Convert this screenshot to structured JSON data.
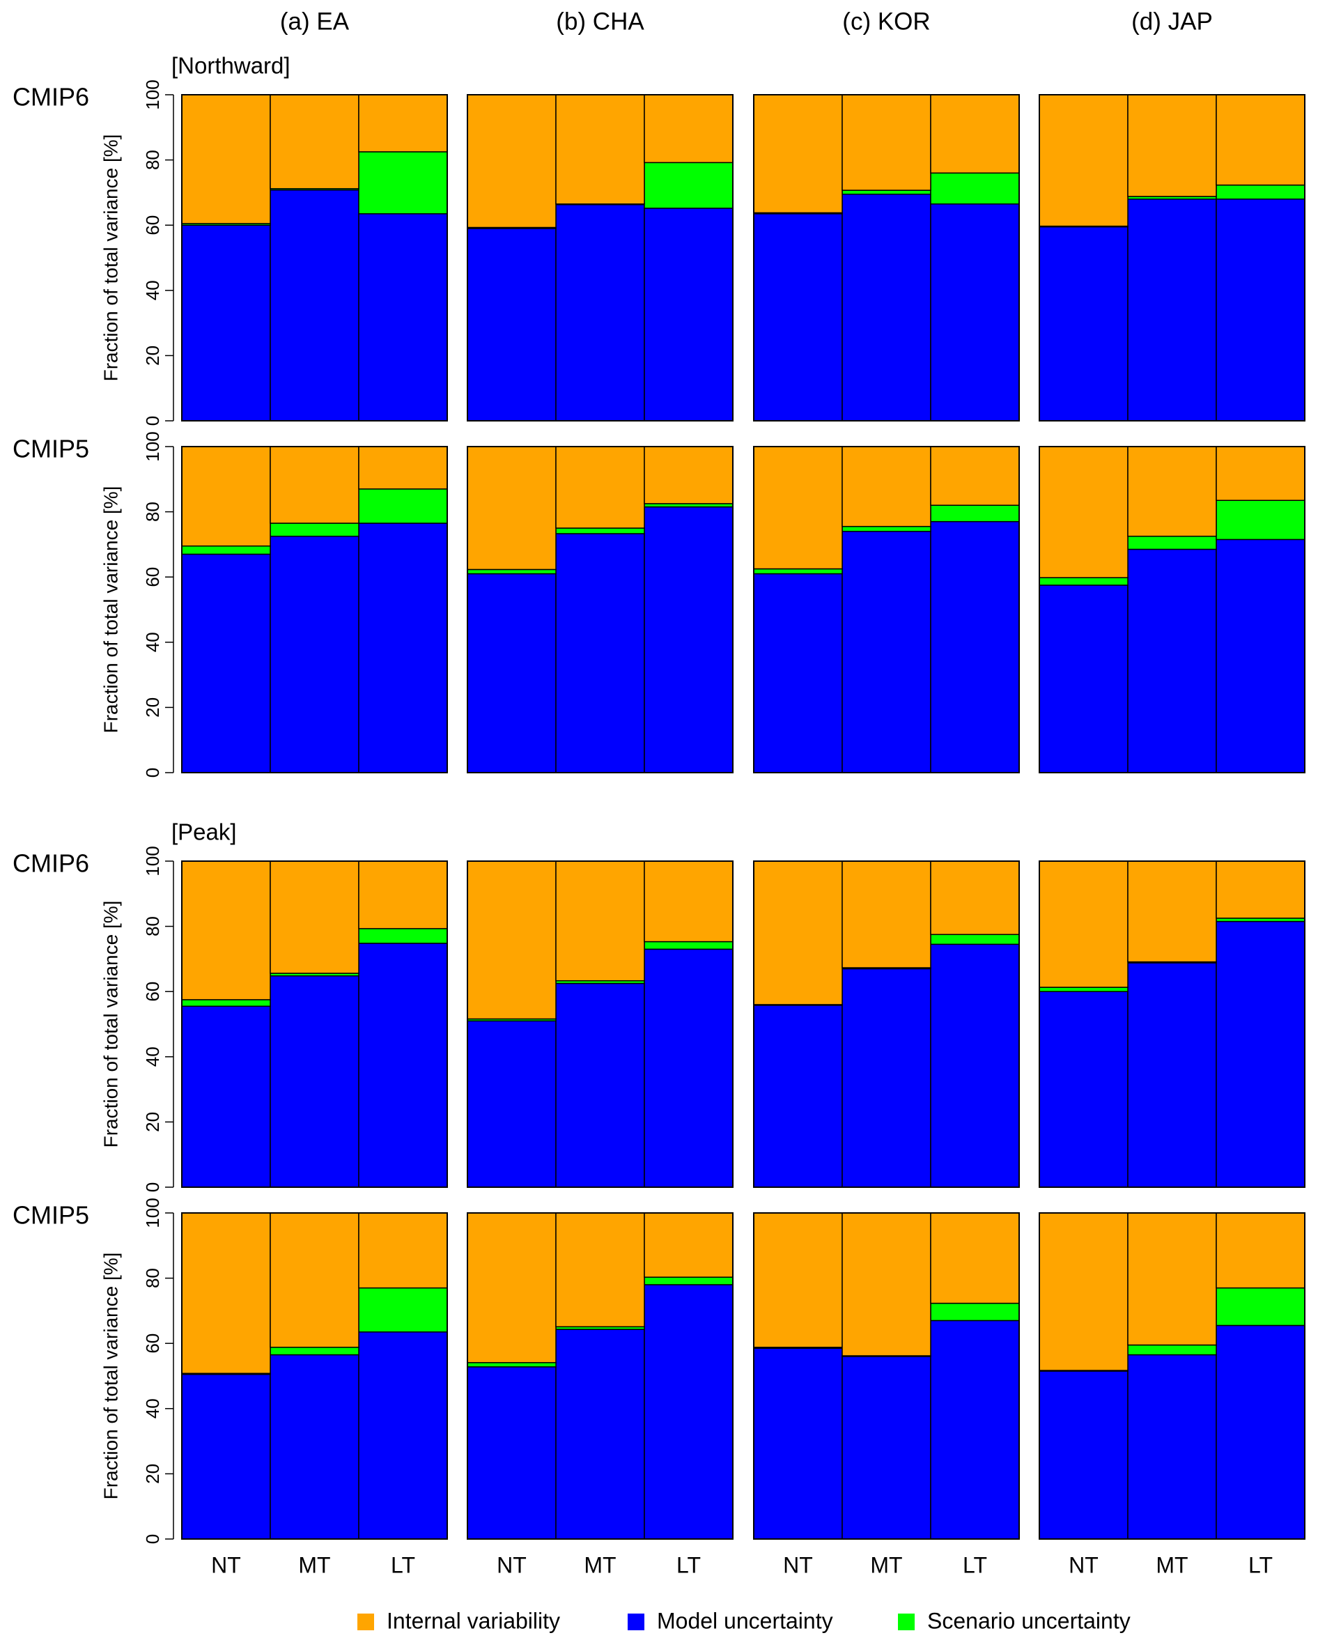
{
  "chart_data": [
    {
      "type": "bar",
      "stacked": true,
      "title": "(a) EA",
      "row_label": "CMIP6",
      "section": "[Northward]",
      "ylabel": "Fraction of total variance [%]",
      "categories": [
        null,
        null,
        null
      ],
      "ylim": [
        0,
        100
      ],
      "yticks": [
        0,
        20,
        40,
        60,
        80,
        100
      ],
      "series": [
        {
          "color": "#0000ff",
          "values": [
            60,
            70.8,
            63.5
          ]
        },
        {
          "color": "#00ff00",
          "values": [
            0.5,
            0.4,
            19
          ]
        },
        {
          "color": "#ffa500",
          "values": [
            39.5,
            28.8,
            17.5
          ]
        }
      ]
    },
    {
      "type": "bar",
      "stacked": true,
      "title": "(b) CHA",
      "categories": [
        null,
        null,
        null
      ],
      "ylim": [
        0,
        100
      ],
      "series": [
        {
          "color": "#0000ff",
          "values": [
            59,
            66.3,
            65.2
          ]
        },
        {
          "color": "#00ff00",
          "values": [
            0.3,
            0.2,
            14
          ]
        },
        {
          "color": "#ffa500",
          "values": [
            40.7,
            33.5,
            20.8
          ]
        }
      ]
    },
    {
      "type": "bar",
      "stacked": true,
      "title": "(c) KOR",
      "categories": [
        null,
        null,
        null
      ],
      "ylim": [
        0,
        100
      ],
      "series": [
        {
          "color": "#0000ff",
          "values": [
            63.5,
            69.5,
            66.5
          ]
        },
        {
          "color": "#00ff00",
          "values": [
            0.3,
            1.2,
            9.5
          ]
        },
        {
          "color": "#ffa500",
          "values": [
            36.2,
            29.3,
            24
          ]
        }
      ]
    },
    {
      "type": "bar",
      "stacked": true,
      "title": "(d) JAP",
      "categories": [
        null,
        null,
        null
      ],
      "ylim": [
        0,
        100
      ],
      "series": [
        {
          "color": "#0000ff",
          "values": [
            59.5,
            68,
            68
          ]
        },
        {
          "color": "#00ff00",
          "values": [
            0.2,
            0.8,
            4.3
          ]
        },
        {
          "color": "#ffa500",
          "values": [
            40.3,
            31.2,
            27.7
          ]
        }
      ]
    },
    {
      "type": "bar",
      "stacked": true,
      "row_label": "CMIP5",
      "ylabel": "Fraction of total variance [%]",
      "categories": [
        null,
        null,
        null
      ],
      "ylim": [
        0,
        100
      ],
      "yticks": [
        0,
        20,
        40,
        60,
        80,
        100
      ],
      "series": [
        {
          "color": "#0000ff",
          "values": [
            67,
            72.5,
            76.5
          ]
        },
        {
          "color": "#00ff00",
          "values": [
            2.5,
            4,
            10.5
          ]
        },
        {
          "color": "#ffa500",
          "values": [
            30.5,
            23.5,
            13
          ]
        }
      ]
    },
    {
      "type": "bar",
      "stacked": true,
      "categories": [
        null,
        null,
        null
      ],
      "ylim": [
        0,
        100
      ],
      "series": [
        {
          "color": "#0000ff",
          "values": [
            61,
            73.3,
            81.5
          ]
        },
        {
          "color": "#00ff00",
          "values": [
            1.3,
            1.7,
            1
          ]
        },
        {
          "color": "#ffa500",
          "values": [
            37.7,
            25,
            17.5
          ]
        }
      ]
    },
    {
      "type": "bar",
      "stacked": true,
      "categories": [
        null,
        null,
        null
      ],
      "ylim": [
        0,
        100
      ],
      "series": [
        {
          "color": "#0000ff",
          "values": [
            61,
            74,
            77
          ]
        },
        {
          "color": "#00ff00",
          "values": [
            1.5,
            1.5,
            5
          ]
        },
        {
          "color": "#ffa500",
          "values": [
            37.5,
            24.5,
            18
          ]
        }
      ]
    },
    {
      "type": "bar",
      "stacked": true,
      "categories": [
        null,
        null,
        null
      ],
      "ylim": [
        0,
        100
      ],
      "series": [
        {
          "color": "#0000ff",
          "values": [
            57.5,
            68.5,
            71.5
          ]
        },
        {
          "color": "#00ff00",
          "values": [
            2.3,
            4,
            12
          ]
        },
        {
          "color": "#ffa500",
          "values": [
            40.2,
            27.5,
            16.5
          ]
        }
      ]
    },
    {
      "type": "bar",
      "stacked": true,
      "row_label": "CMIP6",
      "section": "[Peak]",
      "ylabel": "Fraction of total variance [%]",
      "categories": [
        null,
        null,
        null
      ],
      "ylim": [
        0,
        100
      ],
      "yticks": [
        0,
        20,
        40,
        60,
        80,
        100
      ],
      "series": [
        {
          "color": "#0000ff",
          "values": [
            55.5,
            64.8,
            74.8
          ]
        },
        {
          "color": "#00ff00",
          "values": [
            2,
            0.8,
            4.5
          ]
        },
        {
          "color": "#ffa500",
          "values": [
            42.5,
            34.4,
            20.7
          ]
        }
      ]
    },
    {
      "type": "bar",
      "stacked": true,
      "categories": [
        null,
        null,
        null
      ],
      "ylim": [
        0,
        100
      ],
      "series": [
        {
          "color": "#0000ff",
          "values": [
            51,
            62.5,
            73
          ]
        },
        {
          "color": "#00ff00",
          "values": [
            0.6,
            0.8,
            2.3
          ]
        },
        {
          "color": "#ffa500",
          "values": [
            48.4,
            36.7,
            24.7
          ]
        }
      ]
    },
    {
      "type": "bar",
      "stacked": true,
      "categories": [
        null,
        null,
        null
      ],
      "ylim": [
        0,
        100
      ],
      "series": [
        {
          "color": "#0000ff",
          "values": [
            55.8,
            67,
            74.5
          ]
        },
        {
          "color": "#00ff00",
          "values": [
            0.2,
            0.3,
            3
          ]
        },
        {
          "color": "#ffa500",
          "values": [
            44,
            32.7,
            22.5
          ]
        }
      ]
    },
    {
      "type": "bar",
      "stacked": true,
      "categories": [
        null,
        null,
        null
      ],
      "ylim": [
        0,
        100
      ],
      "series": [
        {
          "color": "#0000ff",
          "values": [
            60,
            68.8,
            81.5
          ]
        },
        {
          "color": "#00ff00",
          "values": [
            1.3,
            0.3,
            1
          ]
        },
        {
          "color": "#ffa500",
          "values": [
            38.7,
            30.9,
            17.5
          ]
        }
      ]
    },
    {
      "type": "bar",
      "stacked": true,
      "row_label": "CMIP5",
      "ylabel": "Fraction of total variance [%]",
      "categories": [
        "NT",
        "MT",
        "LT"
      ],
      "ylim": [
        0,
        100
      ],
      "yticks": [
        0,
        20,
        40,
        60,
        80,
        100
      ],
      "series": [
        {
          "color": "#0000ff",
          "values": [
            50.5,
            56.5,
            63.5
          ]
        },
        {
          "color": "#00ff00",
          "values": [
            0.3,
            2.3,
            13.5
          ]
        },
        {
          "color": "#ffa500",
          "values": [
            49.2,
            41.2,
            23
          ]
        }
      ]
    },
    {
      "type": "bar",
      "stacked": true,
      "categories": [
        "NT",
        "MT",
        "LT"
      ],
      "ylim": [
        0,
        100
      ],
      "series": [
        {
          "color": "#0000ff",
          "values": [
            52.8,
            64.3,
            78
          ]
        },
        {
          "color": "#00ff00",
          "values": [
            1.3,
            0.8,
            2.3
          ]
        },
        {
          "color": "#ffa500",
          "values": [
            45.9,
            34.9,
            19.7
          ]
        }
      ]
    },
    {
      "type": "bar",
      "stacked": true,
      "categories": [
        "NT",
        "MT",
        "LT"
      ],
      "ylim": [
        0,
        100
      ],
      "series": [
        {
          "color": "#0000ff",
          "values": [
            58.5,
            56,
            67
          ]
        },
        {
          "color": "#00ff00",
          "values": [
            0.3,
            0.2,
            5.3
          ]
        },
        {
          "color": "#ffa500",
          "values": [
            41.2,
            43.8,
            27.7
          ]
        }
      ]
    },
    {
      "type": "bar",
      "stacked": true,
      "categories": [
        "NT",
        "MT",
        "LT"
      ],
      "ylim": [
        0,
        100
      ],
      "series": [
        {
          "color": "#0000ff",
          "values": [
            51.5,
            56.5,
            65.5
          ]
        },
        {
          "color": "#00ff00",
          "values": [
            0.2,
            3,
            11.5
          ]
        },
        {
          "color": "#ffa500",
          "values": [
            48.3,
            40.5,
            23
          ]
        }
      ]
    }
  ],
  "legend": {
    "position": "bottom",
    "items": [
      {
        "name": "Internal variability",
        "color": "#ffa500"
      },
      {
        "name": "Model uncertainty",
        "color": "#0000ff"
      },
      {
        "name": "Scenario uncertainty",
        "color": "#00ff00"
      }
    ]
  }
}
